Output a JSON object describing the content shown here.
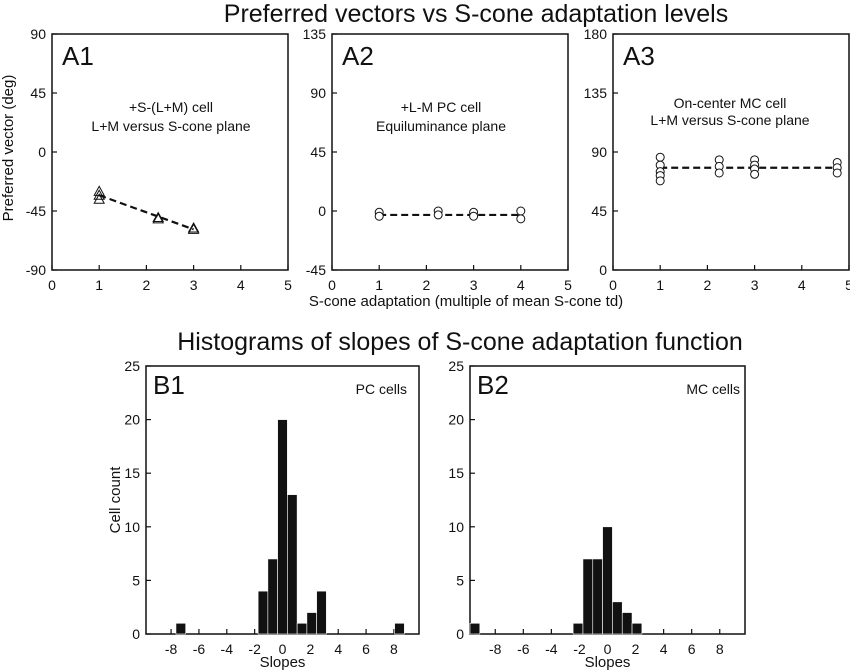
{
  "figure": {
    "title_top": "Preferred vectors vs S-cone adaptation levels",
    "title_bottom": "Histograms of slopes of S-cone adaptation function",
    "top_ylabel": "Preferred vector (deg)",
    "top_xlabel": "S-cone adaptation (multiple of mean S-cone td)",
    "bottom_ylabel": "Cell count"
  },
  "chart_data": [
    {
      "id": "A1",
      "type": "scatter",
      "panel_label": "A1",
      "annotation": [
        "+S-(L+M) cell",
        "L+M versus S-cone plane"
      ],
      "xlim": [
        0,
        5
      ],
      "ylim": [
        -90,
        90
      ],
      "xticks": [
        0,
        1,
        2,
        3,
        4,
        5
      ],
      "yticks": [
        -90,
        -45,
        0,
        45,
        90
      ],
      "marker": "triangle",
      "points": [
        {
          "x": 1,
          "y": -30
        },
        {
          "x": 1,
          "y": -33
        },
        {
          "x": 1,
          "y": -36
        },
        {
          "x": 2.25,
          "y": -50
        },
        {
          "x": 2.25,
          "y": -51
        },
        {
          "x": 3,
          "y": -58
        },
        {
          "x": 3,
          "y": -59
        }
      ],
      "fit": [
        {
          "x": 1,
          "y": -33
        },
        {
          "x": 3,
          "y": -59
        }
      ]
    },
    {
      "id": "A2",
      "type": "scatter",
      "panel_label": "A2",
      "annotation": [
        "+L-M PC cell",
        "Equiluminance plane"
      ],
      "xlim": [
        0,
        5
      ],
      "ylim": [
        -45,
        135
      ],
      "xticks": [
        0,
        1,
        2,
        3,
        4,
        5
      ],
      "yticks": [
        -45,
        0,
        45,
        90,
        135
      ],
      "marker": "circle",
      "points": [
        {
          "x": 1,
          "y": -1
        },
        {
          "x": 1,
          "y": -4
        },
        {
          "x": 2.25,
          "y": 0
        },
        {
          "x": 2.25,
          "y": -3
        },
        {
          "x": 3,
          "y": -1
        },
        {
          "x": 3,
          "y": -4
        },
        {
          "x": 4,
          "y": 0
        },
        {
          "x": 4,
          "y": -6
        }
      ],
      "fit": [
        {
          "x": 1,
          "y": -3
        },
        {
          "x": 4,
          "y": -3
        }
      ]
    },
    {
      "id": "A3",
      "type": "scatter",
      "panel_label": "A3",
      "annotation": [
        "On-center MC cell",
        "L+M versus S-cone plane"
      ],
      "xlim": [
        0,
        5
      ],
      "ylim": [
        0,
        180
      ],
      "xticks": [
        0,
        1,
        2,
        3,
        4,
        5
      ],
      "yticks": [
        0,
        45,
        90,
        135,
        180
      ],
      "marker": "circle",
      "points": [
        {
          "x": 1,
          "y": 86
        },
        {
          "x": 1,
          "y": 80
        },
        {
          "x": 1,
          "y": 75
        },
        {
          "x": 1,
          "y": 72
        },
        {
          "x": 1,
          "y": 68
        },
        {
          "x": 2.25,
          "y": 84
        },
        {
          "x": 2.25,
          "y": 79
        },
        {
          "x": 2.25,
          "y": 74
        },
        {
          "x": 3,
          "y": 84
        },
        {
          "x": 3,
          "y": 80
        },
        {
          "x": 3,
          "y": 77
        },
        {
          "x": 3,
          "y": 73
        },
        {
          "x": 4.75,
          "y": 82
        },
        {
          "x": 4.75,
          "y": 78
        },
        {
          "x": 4.75,
          "y": 74
        }
      ],
      "fit": [
        {
          "x": 1,
          "y": 78
        },
        {
          "x": 4.75,
          "y": 78
        }
      ]
    },
    {
      "id": "B1",
      "type": "bar",
      "panel_label": "B1",
      "annotation": [
        "PC cells"
      ],
      "xlabel": "Slopes",
      "xlim": [
        -9.8,
        9.8
      ],
      "ylim": [
        0,
        25
      ],
      "xticks": [
        -8,
        -6,
        -4,
        -2,
        0,
        2,
        4,
        6,
        8
      ],
      "yticks": [
        0,
        5,
        10,
        15,
        20,
        25
      ],
      "bin_width": 0.7,
      "bins": [
        {
          "x": -7.3,
          "value": 1
        },
        {
          "x": -1.4,
          "value": 4
        },
        {
          "x": -0.7,
          "value": 7
        },
        {
          "x": 0,
          "value": 20
        },
        {
          "x": 0.7,
          "value": 13
        },
        {
          "x": 1.4,
          "value": 1
        },
        {
          "x": 2.1,
          "value": 2
        },
        {
          "x": 2.8,
          "value": 4
        },
        {
          "x": 8.4,
          "value": 1
        }
      ]
    },
    {
      "id": "B2",
      "type": "bar",
      "panel_label": "B2",
      "annotation": [
        "MC cells"
      ],
      "xlabel": "Slopes",
      "xlim": [
        -9.8,
        9.8
      ],
      "ylim": [
        0,
        25
      ],
      "xticks": [
        -8,
        -6,
        -4,
        -2,
        0,
        2,
        4,
        6,
        8
      ],
      "yticks": [
        0,
        5,
        10,
        15,
        20,
        25
      ],
      "bin_width": 0.7,
      "bins": [
        {
          "x": -9.45,
          "value": 1
        },
        {
          "x": -2.1,
          "value": 1
        },
        {
          "x": -1.4,
          "value": 7
        },
        {
          "x": -0.7,
          "value": 7
        },
        {
          "x": 0,
          "value": 10
        },
        {
          "x": 0.7,
          "value": 3
        },
        {
          "x": 1.4,
          "value": 2
        },
        {
          "x": 2.1,
          "value": 1
        }
      ]
    }
  ]
}
